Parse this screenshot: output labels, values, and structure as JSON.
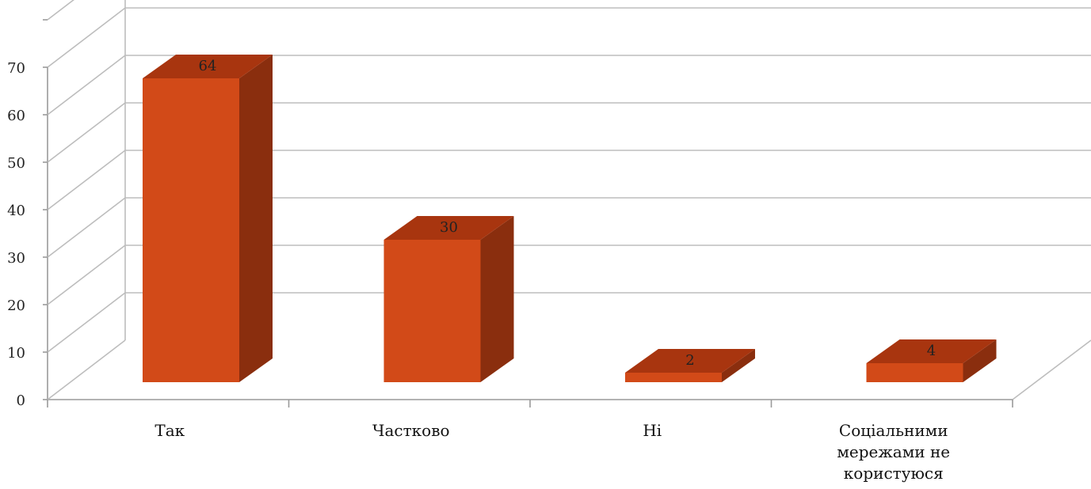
{
  "chart_data": {
    "type": "bar",
    "categories": [
      "Так",
      "Частково",
      "Ні",
      "Соціальними мережами не користуюся"
    ],
    "category_lines": [
      [
        "Так"
      ],
      [
        "Частково"
      ],
      [
        "Ні"
      ],
      [
        "Соціальними",
        "мережами не",
        "користуюся"
      ]
    ],
    "values": [
      64,
      30,
      2,
      4
    ],
    "data_labels": [
      "64",
      "30",
      "2",
      "4"
    ],
    "ylim": [
      0,
      70
    ],
    "yticks": [
      "0",
      "10",
      "20",
      "30",
      "40",
      "50",
      "60",
      "70"
    ],
    "grid": true,
    "title": "",
    "xlabel": "",
    "ylabel": "",
    "colors": {
      "front": "#d24a18",
      "top": "#a8350f",
      "side": "#8a2e0e"
    }
  }
}
